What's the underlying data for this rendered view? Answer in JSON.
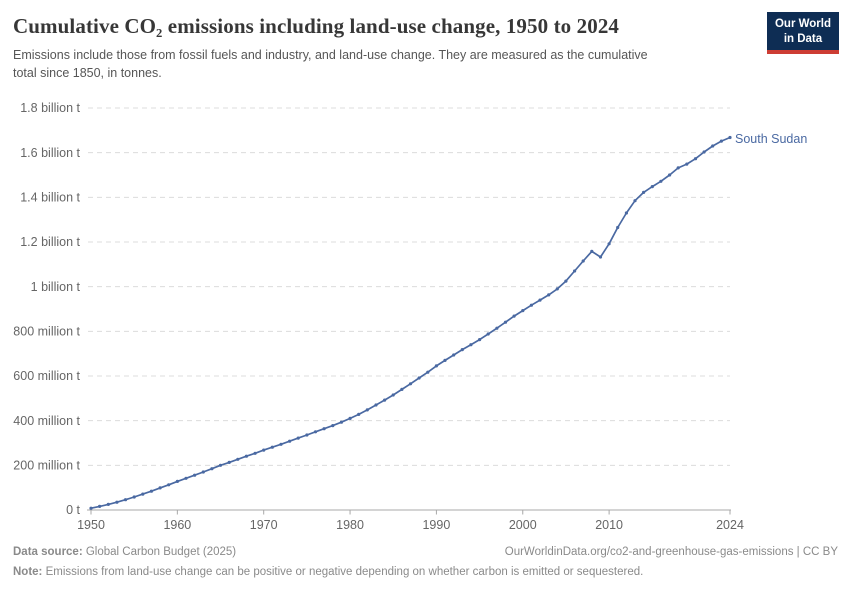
{
  "header": {
    "title": "Cumulative CO₂ emissions including land-use change, 1950 to 2024",
    "subtitle": "Emissions include those from fossil fuels and industry, and land-use change. They are measured as the cumulative total since 1850, in tonnes.",
    "logo": {
      "line1": "Our World",
      "line2": "in Data"
    }
  },
  "chart_data": {
    "type": "line",
    "title": "Cumulative CO₂ emissions including land-use change, 1950 to 2024",
    "entity_label": "South Sudan",
    "line_color": "#4a69a2",
    "grid": "horizontal dashed",
    "legend_position": "end-of-line label",
    "xlabel": "",
    "ylabel": "",
    "values_unit": "million tonnes",
    "ylim_million_tonnes": [
      0,
      1800
    ],
    "xlim": [
      1950,
      2024
    ],
    "xticks": [
      1950,
      1960,
      1970,
      1980,
      1990,
      2000,
      2010,
      2024
    ],
    "yticks": [
      {
        "value": 0,
        "label": "0 t"
      },
      {
        "value": 200,
        "label": "200 million t"
      },
      {
        "value": 400,
        "label": "400 million t"
      },
      {
        "value": 600,
        "label": "600 million t"
      },
      {
        "value": 800,
        "label": "800 million t"
      },
      {
        "value": 1000,
        "label": "1 billion t"
      },
      {
        "value": 1200,
        "label": "1.2 billion t"
      },
      {
        "value": 1400,
        "label": "1.4 billion t"
      },
      {
        "value": 1600,
        "label": "1.6 billion t"
      },
      {
        "value": 1800,
        "label": "1.8 billion t"
      }
    ],
    "years": [
      1950,
      1951,
      1952,
      1953,
      1954,
      1955,
      1956,
      1957,
      1958,
      1959,
      1960,
      1961,
      1962,
      1963,
      1964,
      1965,
      1966,
      1967,
      1968,
      1969,
      1970,
      1971,
      1972,
      1973,
      1974,
      1975,
      1976,
      1977,
      1978,
      1979,
      1980,
      1981,
      1982,
      1983,
      1984,
      1985,
      1986,
      1987,
      1988,
      1989,
      1990,
      1991,
      1992,
      1993,
      1994,
      1995,
      1996,
      1997,
      1998,
      1999,
      2000,
      2001,
      2002,
      2003,
      2004,
      2005,
      2006,
      2007,
      2008,
      2009,
      2010,
      2011,
      2012,
      2013,
      2014,
      2015,
      2016,
      2017,
      2018,
      2019,
      2020,
      2021,
      2022,
      2023,
      2024
    ],
    "values_million_tonnes": [
      8,
      16,
      25,
      35,
      46,
      58,
      71,
      84,
      99,
      113,
      128,
      142,
      156,
      170,
      185,
      200,
      213,
      227,
      241,
      254,
      268,
      281,
      294,
      308,
      322,
      336,
      350,
      364,
      378,
      393,
      410,
      428,
      448,
      470,
      492,
      515,
      540,
      565,
      591,
      617,
      645,
      670,
      694,
      718,
      740,
      763,
      788,
      814,
      841,
      868,
      893,
      917,
      940,
      963,
      990,
      1025,
      1070,
      1115,
      1158,
      1133,
      1192,
      1265,
      1330,
      1385,
      1422,
      1448,
      1472,
      1500,
      1532,
      1549,
      1573,
      1603,
      1630,
      1652,
      1668
    ]
  },
  "footer": {
    "datasource_label": "Data source:",
    "datasource_value": " Global Carbon Budget (2025)",
    "link": "OurWorldinData.org/co2-and-greenhouse-gas-emissions | CC BY",
    "note_label": "Note:",
    "note_value": " Emissions from land-use change can be positive or negative depending on whether carbon is emitted or sequestered."
  }
}
